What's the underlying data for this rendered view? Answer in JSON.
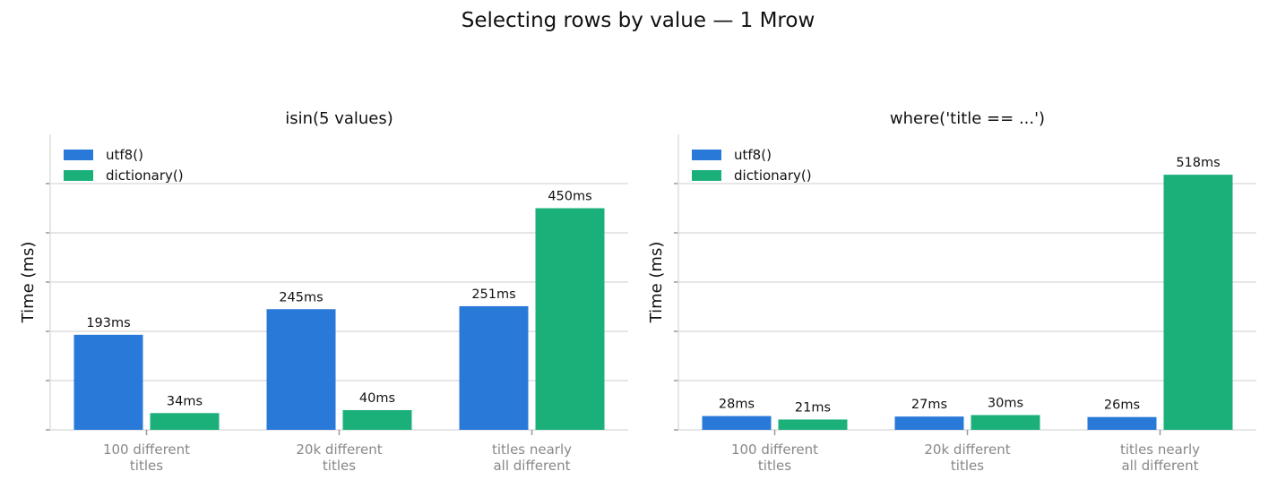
{
  "figure_title": "Selecting rows by value — 1 Mrow",
  "colors": {
    "utf8": "#2979d8",
    "dictionary": "#1bb07a"
  },
  "chart_data": [
    {
      "type": "bar",
      "title": "isin(5 values)",
      "ylabel": "Time (ms)",
      "xlabel": "",
      "categories": [
        [
          "100 different",
          "titles"
        ],
        [
          "20k different",
          "titles"
        ],
        [
          "titles nearly",
          "all different"
        ]
      ],
      "series": [
        {
          "name": "utf8()",
          "values": [
            193,
            245,
            251
          ],
          "labels": [
            "193ms",
            "245ms",
            "251ms"
          ]
        },
        {
          "name": "dictionary()",
          "values": [
            34,
            40,
            450
          ],
          "labels": [
            "34ms",
            "40ms",
            "450ms"
          ]
        }
      ],
      "ylim": [
        0,
        600
      ],
      "ytick_step": 100,
      "grid": true,
      "legend": "top-left"
    },
    {
      "type": "bar",
      "title": "where('title == ...')",
      "ylabel": "Time (ms)",
      "xlabel": "",
      "categories": [
        [
          "100 different",
          "titles"
        ],
        [
          "20k different",
          "titles"
        ],
        [
          "titles nearly",
          "all different"
        ]
      ],
      "series": [
        {
          "name": "utf8()",
          "values": [
            28,
            27,
            26
          ],
          "labels": [
            "28ms",
            "27ms",
            "26ms"
          ]
        },
        {
          "name": "dictionary()",
          "values": [
            21,
            30,
            518
          ],
          "labels": [
            "21ms",
            "30ms",
            "518ms"
          ]
        }
      ],
      "ylim": [
        0,
        600
      ],
      "ytick_step": 100,
      "grid": true,
      "legend": "top-left"
    }
  ]
}
